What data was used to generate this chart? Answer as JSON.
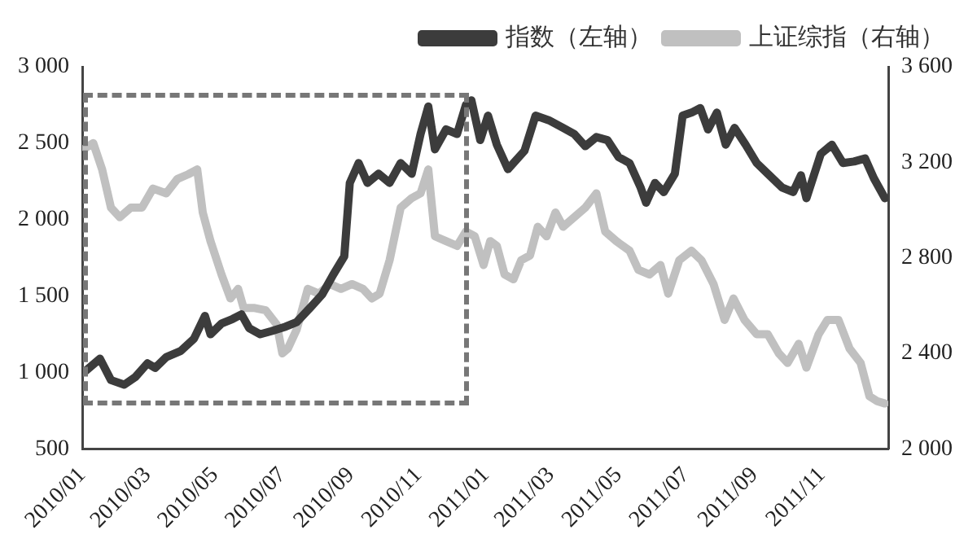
{
  "chart_data": {
    "type": "line",
    "legend": "top",
    "grid": false,
    "marker": "none",
    "line_style": "solid",
    "xlim": [
      "2010-01-01",
      "2011-12-31"
    ],
    "xticks": [
      {
        "value": "2010-01-01",
        "label": "2010/01"
      },
      {
        "value": "2010-03-01",
        "label": "2010/03"
      },
      {
        "value": "2010-05-01",
        "label": "2010/05"
      },
      {
        "value": "2010-07-01",
        "label": "2010/07"
      },
      {
        "value": "2010-09-01",
        "label": "2010/09"
      },
      {
        "value": "2010-11-01",
        "label": "2010/11"
      },
      {
        "value": "2011-01-01",
        "label": "2011/01"
      },
      {
        "value": "2011-03-01",
        "label": "2011/03"
      },
      {
        "value": "2011-05-01",
        "label": "2011/05"
      },
      {
        "value": "2011-07-01",
        "label": "2011/07"
      },
      {
        "value": "2011-09-01",
        "label": "2011/09"
      },
      {
        "value": "2011-11-01",
        "label": "2011/11"
      }
    ],
    "ylim": [
      500,
      3000
    ],
    "yticks": [
      500,
      {
        "value": 1000,
        "label": "1 000"
      },
      {
        "value": 1500,
        "label": "1 500"
      },
      {
        "value": 2000,
        "label": "2 000"
      },
      {
        "value": 2500,
        "label": "2 500"
      },
      {
        "value": 3000,
        "label": "3 000"
      }
    ],
    "y2lim": [
      2000,
      3600
    ],
    "y2ticks": [
      {
        "value": 2000,
        "label": "2 000"
      },
      {
        "value": 2400,
        "label": "2 400"
      },
      {
        "value": 2800,
        "label": "2 800"
      },
      {
        "value": 3200,
        "label": "3 200"
      },
      {
        "value": 3600,
        "label": "3 600"
      }
    ],
    "series": [
      {
        "name": "指数（左轴）",
        "color": "#3c3c3c",
        "axis": "y",
        "x": [
          "2010-01-04",
          "2010-01-17",
          "2010-01-27",
          "2010-02-08",
          "2010-02-18",
          "2010-03-01",
          "2010-03-08",
          "2010-03-18",
          "2010-03-31",
          "2010-04-12",
          "2010-04-22",
          "2010-04-27",
          "2010-05-07",
          "2010-05-17",
          "2010-05-25",
          "2010-06-01",
          "2010-06-11",
          "2010-06-21",
          "2010-07-04",
          "2010-07-14",
          "2010-07-27",
          "2010-08-06",
          "2010-08-16",
          "2010-08-26",
          "2010-08-31",
          "2010-09-08",
          "2010-09-16",
          "2010-09-26",
          "2010-10-06",
          "2010-10-16",
          "2010-10-26",
          "2010-11-03",
          "2010-11-10",
          "2010-11-16",
          "2010-11-26",
          "2010-12-06",
          "2010-12-14",
          "2010-12-19",
          "2010-12-27",
          "2011-01-03",
          "2011-01-11",
          "2011-01-21",
          "2011-02-05",
          "2011-02-15",
          "2011-02-27",
          "2011-03-12",
          "2011-03-22",
          "2011-04-01",
          "2011-04-11",
          "2011-04-21",
          "2011-05-01",
          "2011-05-11",
          "2011-05-21",
          "2011-05-26",
          "2011-06-03",
          "2011-06-11",
          "2011-06-21",
          "2011-06-28",
          "2011-07-06",
          "2011-07-14",
          "2011-07-21",
          "2011-07-29",
          "2011-08-06",
          "2011-08-14",
          "2011-08-24",
          "2011-09-03",
          "2011-09-13",
          "2011-09-26",
          "2011-10-06",
          "2011-10-13",
          "2011-10-18",
          "2011-10-31",
          "2011-11-10",
          "2011-11-20",
          "2011-11-30",
          "2011-12-10",
          "2011-12-18",
          "2011-12-28"
        ],
        "values": [
          1010,
          1090,
          950,
          920,
          970,
          1060,
          1030,
          1100,
          1140,
          1220,
          1370,
          1250,
          1320,
          1350,
          1380,
          1290,
          1250,
          1270,
          1300,
          1330,
          1430,
          1510,
          1640,
          1760,
          2240,
          2370,
          2240,
          2300,
          2240,
          2370,
          2300,
          2560,
          2740,
          2460,
          2590,
          2560,
          2750,
          2780,
          2520,
          2680,
          2490,
          2330,
          2450,
          2680,
          2650,
          2600,
          2560,
          2480,
          2540,
          2520,
          2410,
          2370,
          2210,
          2110,
          2240,
          2180,
          2300,
          2680,
          2700,
          2730,
          2590,
          2700,
          2490,
          2600,
          2490,
          2370,
          2300,
          2210,
          2180,
          2290,
          2140,
          2430,
          2490,
          2370,
          2380,
          2400,
          2270,
          2140
        ]
      },
      {
        "name": "上证综指（右轴）",
        "color": "#c0c0c0",
        "axis": "y2",
        "x": [
          "2010-01-04",
          "2010-01-11",
          "2010-01-19",
          "2010-01-27",
          "2010-02-04",
          "2010-02-14",
          "2010-02-24",
          "2010-03-06",
          "2010-03-18",
          "2010-03-28",
          "2010-04-07",
          "2010-04-15",
          "2010-04-20",
          "2010-04-27",
          "2010-05-07",
          "2010-05-15",
          "2010-05-22",
          "2010-05-27",
          "2010-06-06",
          "2010-06-16",
          "2010-06-26",
          "2010-07-01",
          "2010-07-06",
          "2010-07-14",
          "2010-07-24",
          "2010-08-03",
          "2010-08-13",
          "2010-08-23",
          "2010-09-02",
          "2010-09-12",
          "2010-09-20",
          "2010-09-27",
          "2010-10-06",
          "2010-10-16",
          "2010-10-26",
          "2010-11-03",
          "2010-11-10",
          "2010-11-16",
          "2010-11-26",
          "2010-12-06",
          "2010-12-14",
          "2010-12-22",
          "2010-12-30",
          "2011-01-05",
          "2011-01-11",
          "2011-01-18",
          "2011-01-26",
          "2011-02-02",
          "2011-02-10",
          "2011-02-17",
          "2011-02-25",
          "2011-03-05",
          "2011-03-12",
          "2011-03-22",
          "2011-04-01",
          "2011-04-11",
          "2011-04-19",
          "2011-04-29",
          "2011-05-11",
          "2011-05-19",
          "2011-05-29",
          "2011-06-08",
          "2011-06-15",
          "2011-06-25",
          "2011-07-06",
          "2011-07-15",
          "2011-07-26",
          "2011-08-05",
          "2011-08-13",
          "2011-08-23",
          "2011-09-03",
          "2011-09-13",
          "2011-09-23",
          "2011-10-01",
          "2011-10-11",
          "2011-10-18",
          "2011-10-29",
          "2011-11-06",
          "2011-11-16",
          "2011-11-26",
          "2011-12-06",
          "2011-12-14",
          "2011-12-21",
          "2011-12-28"
        ],
        "values": [
          3260,
          3280,
          3170,
          3010,
          2970,
          3010,
          3010,
          3090,
          3070,
          3130,
          3150,
          3170,
          2990,
          2870,
          2730,
          2630,
          2670,
          2590,
          2590,
          2580,
          2520,
          2400,
          2420,
          2500,
          2670,
          2650,
          2690,
          2670,
          2690,
          2670,
          2630,
          2650,
          2790,
          3010,
          3050,
          3070,
          3170,
          2890,
          2870,
          2850,
          2910,
          2890,
          2770,
          2870,
          2850,
          2730,
          2710,
          2790,
          2810,
          2930,
          2890,
          2990,
          2930,
          2970,
          3010,
          3070,
          2910,
          2870,
          2830,
          2750,
          2730,
          2770,
          2650,
          2790,
          2830,
          2790,
          2690,
          2540,
          2630,
          2540,
          2480,
          2480,
          2400,
          2360,
          2440,
          2340,
          2480,
          2540,
          2540,
          2420,
          2360,
          2220,
          2200,
          2190
        ]
      }
    ]
  }
}
